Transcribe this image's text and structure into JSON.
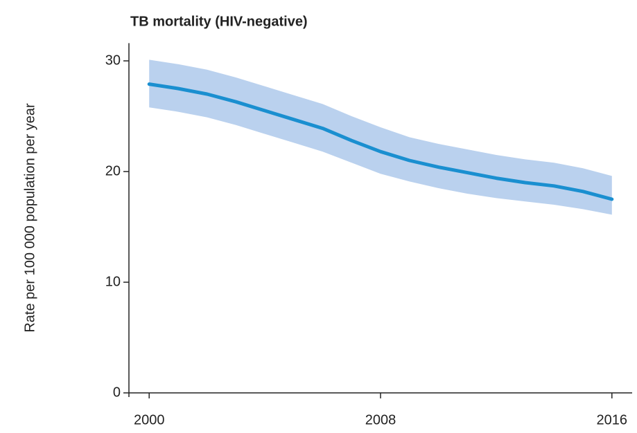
{
  "chart_data": {
    "type": "line",
    "title": "TB mortality (HIV-negative)",
    "ylabel": "Rate per 100 000 population per year",
    "x": [
      2000,
      2001,
      2002,
      2003,
      2004,
      2005,
      2006,
      2007,
      2008,
      2009,
      2010,
      2011,
      2012,
      2013,
      2014,
      2015,
      2016
    ],
    "series": [
      {
        "color": "#1a8fd0",
        "band_color": "#a9c6ea",
        "values": [
          27.9,
          27.5,
          27.0,
          26.3,
          25.5,
          24.7,
          23.9,
          22.8,
          21.8,
          21.0,
          20.4,
          19.9,
          19.4,
          19.0,
          18.7,
          18.2,
          17.5
        ],
        "upper": [
          30.1,
          29.7,
          29.2,
          28.5,
          27.7,
          26.9,
          26.1,
          25.0,
          24.0,
          23.1,
          22.5,
          22.0,
          21.5,
          21.1,
          20.8,
          20.3,
          19.6
        ],
        "lower": [
          25.8,
          25.4,
          24.9,
          24.2,
          23.4,
          22.6,
          21.8,
          20.8,
          19.8,
          19.1,
          18.5,
          18.0,
          17.6,
          17.3,
          17.0,
          16.6,
          16.1
        ]
      }
    ],
    "xlim": [
      1999.3,
      2016.7
    ],
    "ylim": [
      0,
      31.6
    ],
    "xticks": [
      2000,
      2008,
      2016
    ],
    "yticks": [
      0,
      10,
      20,
      30
    ]
  }
}
